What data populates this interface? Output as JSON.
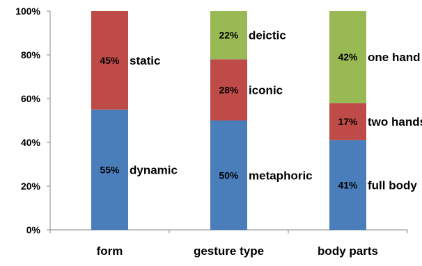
{
  "chart_data": {
    "type": "bar",
    "stacked": true,
    "percent": true,
    "categories": [
      "form",
      "gesture type",
      "body parts"
    ],
    "ylim": [
      0,
      100
    ],
    "yticks": [
      "0%",
      "20%",
      "40%",
      "60%",
      "80%",
      "100%"
    ],
    "grid": false,
    "legend": "none",
    "bars": [
      {
        "category": "form",
        "segments": [
          {
            "label": "dynamic",
            "value": 55,
            "value_label": "55%",
            "color": "#4a7ebb"
          },
          {
            "label": "static",
            "value": 45,
            "value_label": "45%",
            "color": "#be4b48"
          }
        ]
      },
      {
        "category": "gesture type",
        "segments": [
          {
            "label": "metaphoric",
            "value": 50,
            "value_label": "50%",
            "color": "#4a7ebb"
          },
          {
            "label": "iconic",
            "value": 28,
            "value_label": "28%",
            "color": "#be4b48"
          },
          {
            "label": "deictic",
            "value": 22,
            "value_label": "22%",
            "color": "#98b954"
          }
        ]
      },
      {
        "category": "body parts",
        "segments": [
          {
            "label": "full body",
            "value": 41,
            "value_label": "41%",
            "color": "#4a7ebb"
          },
          {
            "label": "two hands",
            "value": 17,
            "value_label": "17%",
            "color": "#be4b48"
          },
          {
            "label": "one hand",
            "value": 42,
            "value_label": "42%",
            "color": "#98b954"
          }
        ]
      }
    ]
  }
}
